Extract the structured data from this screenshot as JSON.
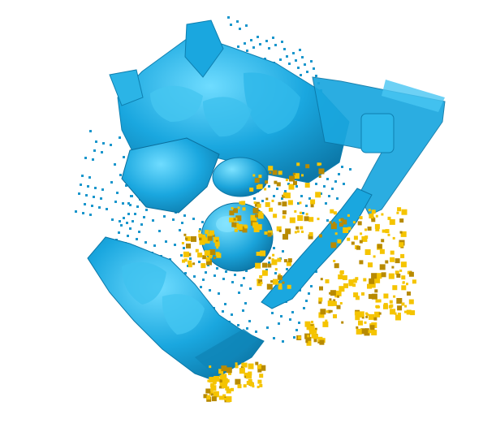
{
  "scene": {
    "background": "#ffffff",
    "colors": {
      "mesh": "#1aa7df",
      "mesh_dark": "#0e7fb0",
      "mesh_light": "#5fd0f5",
      "point_cloud": "#1a96cc",
      "highlight": "#f5c400",
      "highlight_dark": "#b88a00"
    }
  }
}
